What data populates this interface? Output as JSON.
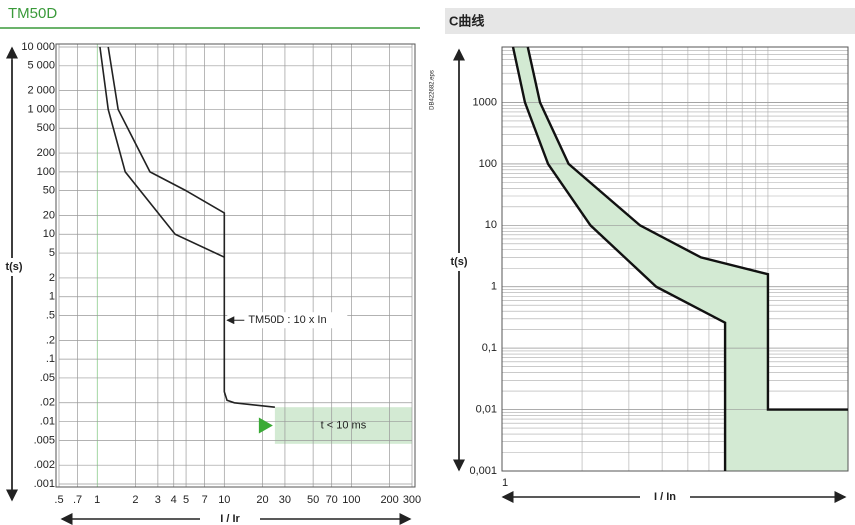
{
  "chart_data": [
    {
      "type": "line",
      "title": "TM50D",
      "xlabel": "I / Ir",
      "ylabel": "t(s)",
      "side_note": "DB422682.eps",
      "xscale": "log",
      "yscale": "log",
      "grid": true,
      "xlim": [
        0.5,
        300
      ],
      "ylim": [
        0.001,
        10000
      ],
      "xticks": [
        {
          "value": 0.5,
          "label": ".5"
        },
        {
          "value": 0.7,
          "label": ".7"
        },
        1,
        2,
        3,
        4,
        5,
        7,
        10,
        20,
        30,
        50,
        70,
        100,
        200,
        300
      ],
      "yticks": [
        {
          "value": 10000,
          "label": "10 000"
        },
        {
          "value": 5000,
          "label": "5 000"
        },
        {
          "value": 2000,
          "label": "2 000"
        },
        {
          "value": 1000,
          "label": "1 000"
        },
        500,
        200,
        100,
        50,
        20,
        10,
        5,
        2,
        1,
        {
          "value": 0.5,
          "label": ".5"
        },
        {
          "value": 0.2,
          "label": ".2"
        },
        {
          "value": 0.1,
          "label": ".1"
        },
        {
          "value": 0.05,
          "label": ".05"
        },
        {
          "value": 0.02,
          "label": ".02"
        },
        {
          "value": 0.01,
          "label": ".01"
        },
        {
          "value": 0.005,
          "label": ".005"
        },
        {
          "value": 0.002,
          "label": ".002"
        },
        {
          "value": 0.001,
          "label": ".001"
        }
      ],
      "series": [
        {
          "color": "#222222",
          "x": [
            1.22,
            1.46,
            2.6,
            4.9,
            10,
            10,
            10.5,
            12,
            25
          ],
          "values": [
            10000,
            1000,
            100,
            51,
            22,
            0.03,
            0.022,
            0.02,
            0.017
          ]
        },
        {
          "color": "#222222",
          "x": [
            1.05,
            1.22,
            1.66,
            4.1,
            10
          ],
          "values": [
            10000,
            1000,
            100,
            10,
            4.3
          ]
        }
      ],
      "annotation": {
        "text": "TM50D : 10 x In",
        "x": 10,
        "y": 0.42
      },
      "zone": {
        "text": "t < 10 ms",
        "x": [
          25,
          300
        ],
        "y": [
          0.0044,
          0.017
        ],
        "color": "#d3ead3"
      }
    },
    {
      "type": "line",
      "title": "C曲线",
      "xlabel": "I / In",
      "ylabel": "t(s)",
      "xscale": "log",
      "yscale": "log",
      "grid": true,
      "minor_grid": true,
      "fill_between": "#d3ead3",
      "xlim": [
        1,
        20
      ],
      "ylim": [
        0.001,
        8000
      ],
      "xticks": [
        1
      ],
      "yticks": [
        {
          "value": 0.001,
          "label": "0,001"
        },
        {
          "value": 0.01,
          "label": "0,01"
        },
        {
          "value": 0.1,
          "label": "0,1"
        },
        1,
        10,
        100,
        1000
      ],
      "series": [
        {
          "color": "#111111",
          "x": [
            1.25,
            1.39,
            1.78,
            3.3,
            5.6,
            10,
            10,
            20
          ],
          "values": [
            8000,
            1000,
            100,
            10,
            3,
            1.6,
            0.01,
            0.01
          ]
        },
        {
          "color": "#111111",
          "x": [
            1.1,
            1.22,
            1.49,
            2.15,
            3.8,
            6.9,
            6.9
          ],
          "values": [
            8000,
            1000,
            100,
            10,
            1,
            0.26,
            0.001
          ]
        }
      ]
    }
  ]
}
